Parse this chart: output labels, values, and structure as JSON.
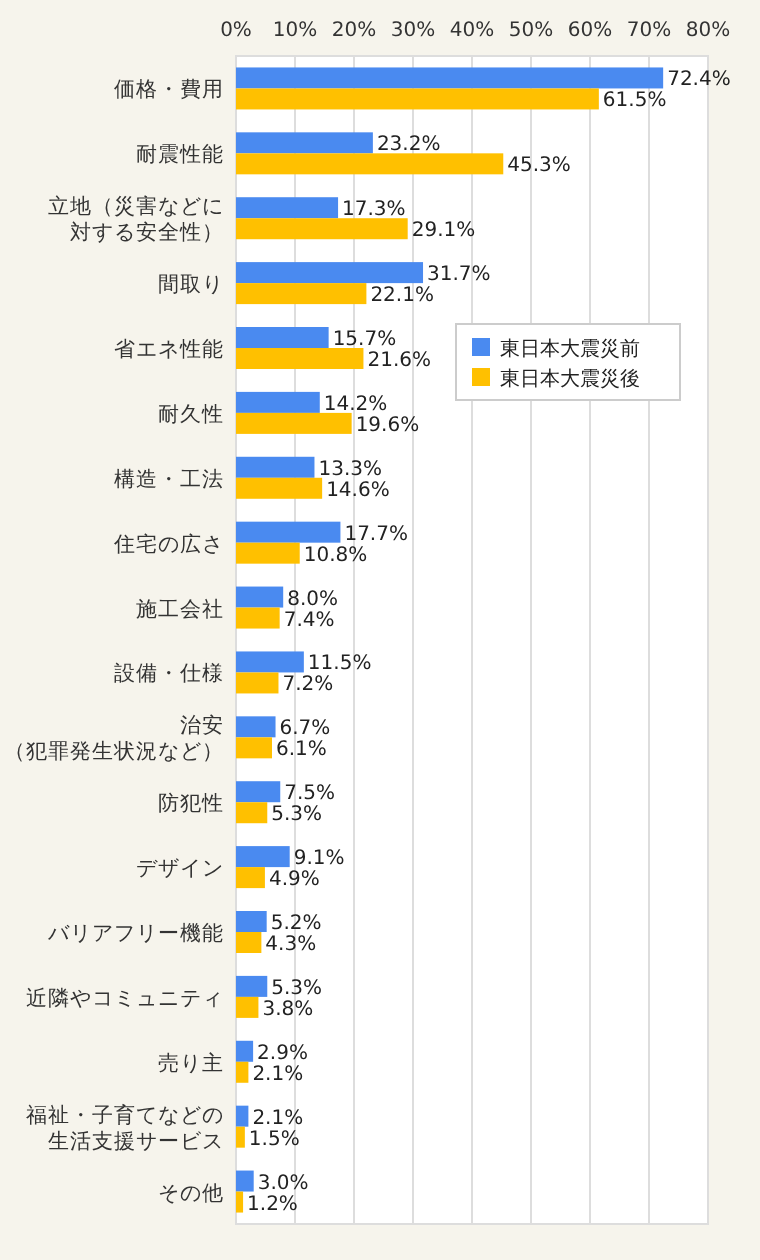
{
  "chart_data": {
    "type": "bar",
    "orientation": "horizontal",
    "categories": [
      "価格・費用",
      "耐震性能",
      "立地（災害などに対する安全性）",
      "間取り",
      "省エネ性能",
      "耐久性",
      "構造・工法",
      "住宅の広さ",
      "施工会社",
      "設備・仕様",
      "治安（犯罪発生状況など）",
      "防犯性",
      "デザイン",
      "バリアフリー機能",
      "近隣やコミュニティ",
      "売り主",
      "福祉・子育てなどの生活支援サービス",
      "その他"
    ],
    "series": [
      {
        "name": "東日本大震災前",
        "color": "#4a8af0",
        "values": [
          72.4,
          23.2,
          17.3,
          31.7,
          15.7,
          14.2,
          13.3,
          17.7,
          8.0,
          11.5,
          6.7,
          7.5,
          9.1,
          5.2,
          5.3,
          2.9,
          2.1,
          3.0
        ],
        "value_labels": [
          "72.4%",
          "23.2%",
          "17.3%",
          "31.7%",
          "15.7%",
          "14.2%",
          "13.3%",
          "17.7%",
          "8.0%",
          "11.5%",
          "6.7%",
          "7.5%",
          "9.1%",
          "5.2%",
          "5.3%",
          "2.9%",
          "2.1%",
          "3.0%"
        ]
      },
      {
        "name": "東日本大震災後",
        "color": "#ffc000",
        "values": [
          61.5,
          45.3,
          29.1,
          22.1,
          21.6,
          19.6,
          14.6,
          10.8,
          7.4,
          7.2,
          6.1,
          5.3,
          4.9,
          4.3,
          3.8,
          2.1,
          1.5,
          1.2
        ],
        "value_labels": [
          "61.5%",
          "45.3%",
          "29.1%",
          "22.1%",
          "21.6%",
          "19.6%",
          "14.6%",
          "10.8%",
          "7.4%",
          "7.2%",
          "6.1%",
          "5.3%",
          "4.9%",
          "4.3%",
          "3.8%",
          "2.1%",
          "1.5%",
          "1.2%"
        ]
      }
    ],
    "xlim": [
      0,
      80
    ],
    "xticks": [
      {
        "value": 0,
        "label": "0%"
      },
      {
        "value": 10,
        "label": "10%"
      },
      {
        "value": 20,
        "label": "20%"
      },
      {
        "value": 30,
        "label": "30%"
      },
      {
        "value": 40,
        "label": "40%"
      },
      {
        "value": 50,
        "label": "50%"
      },
      {
        "value": 60,
        "label": "60%"
      },
      {
        "value": 70,
        "label": "70%"
      },
      {
        "value": 80,
        "label": "80%"
      }
    ],
    "grid": "x",
    "legend": "right"
  }
}
